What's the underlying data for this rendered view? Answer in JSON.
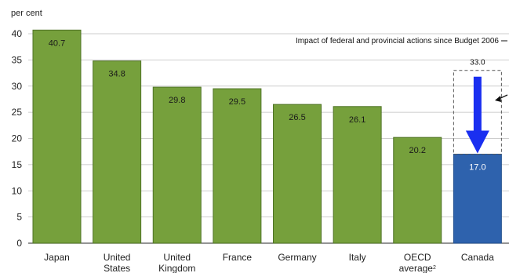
{
  "chart_data": {
    "type": "bar",
    "ylabel": "per cent",
    "ylim": [
      0,
      40
    ],
    "yticks": [
      0,
      5,
      10,
      15,
      20,
      25,
      30,
      35,
      40
    ],
    "grid": true,
    "categories": [
      [
        "Japan"
      ],
      [
        "United",
        "States"
      ],
      [
        "United",
        "Kingdom"
      ],
      [
        "France"
      ],
      [
        "Germany"
      ],
      [
        "Italy"
      ],
      [
        "OECD",
        "average"
      ],
      [
        "Canada"
      ]
    ],
    "category_footnote": {
      "index": 6,
      "mark": "2"
    },
    "values": [
      40.7,
      34.8,
      29.8,
      29.5,
      26.5,
      26.1,
      20.2,
      17.0
    ],
    "value_labels": [
      "40.7",
      "34.8",
      "29.8",
      "29.5",
      "26.5",
      "26.1",
      "20.2",
      "17.0"
    ],
    "colors": {
      "default": "#76a03c",
      "highlight": "#2e62ad",
      "arrow": "#1a2ff0",
      "grid": "#bdbdbd"
    },
    "highlight_index": 7,
    "annotation": {
      "text": "Impact of federal and provincial actions since Budget 2006",
      "before_value": 33.0,
      "before_label": "33.0",
      "after_value": 17.0
    }
  }
}
